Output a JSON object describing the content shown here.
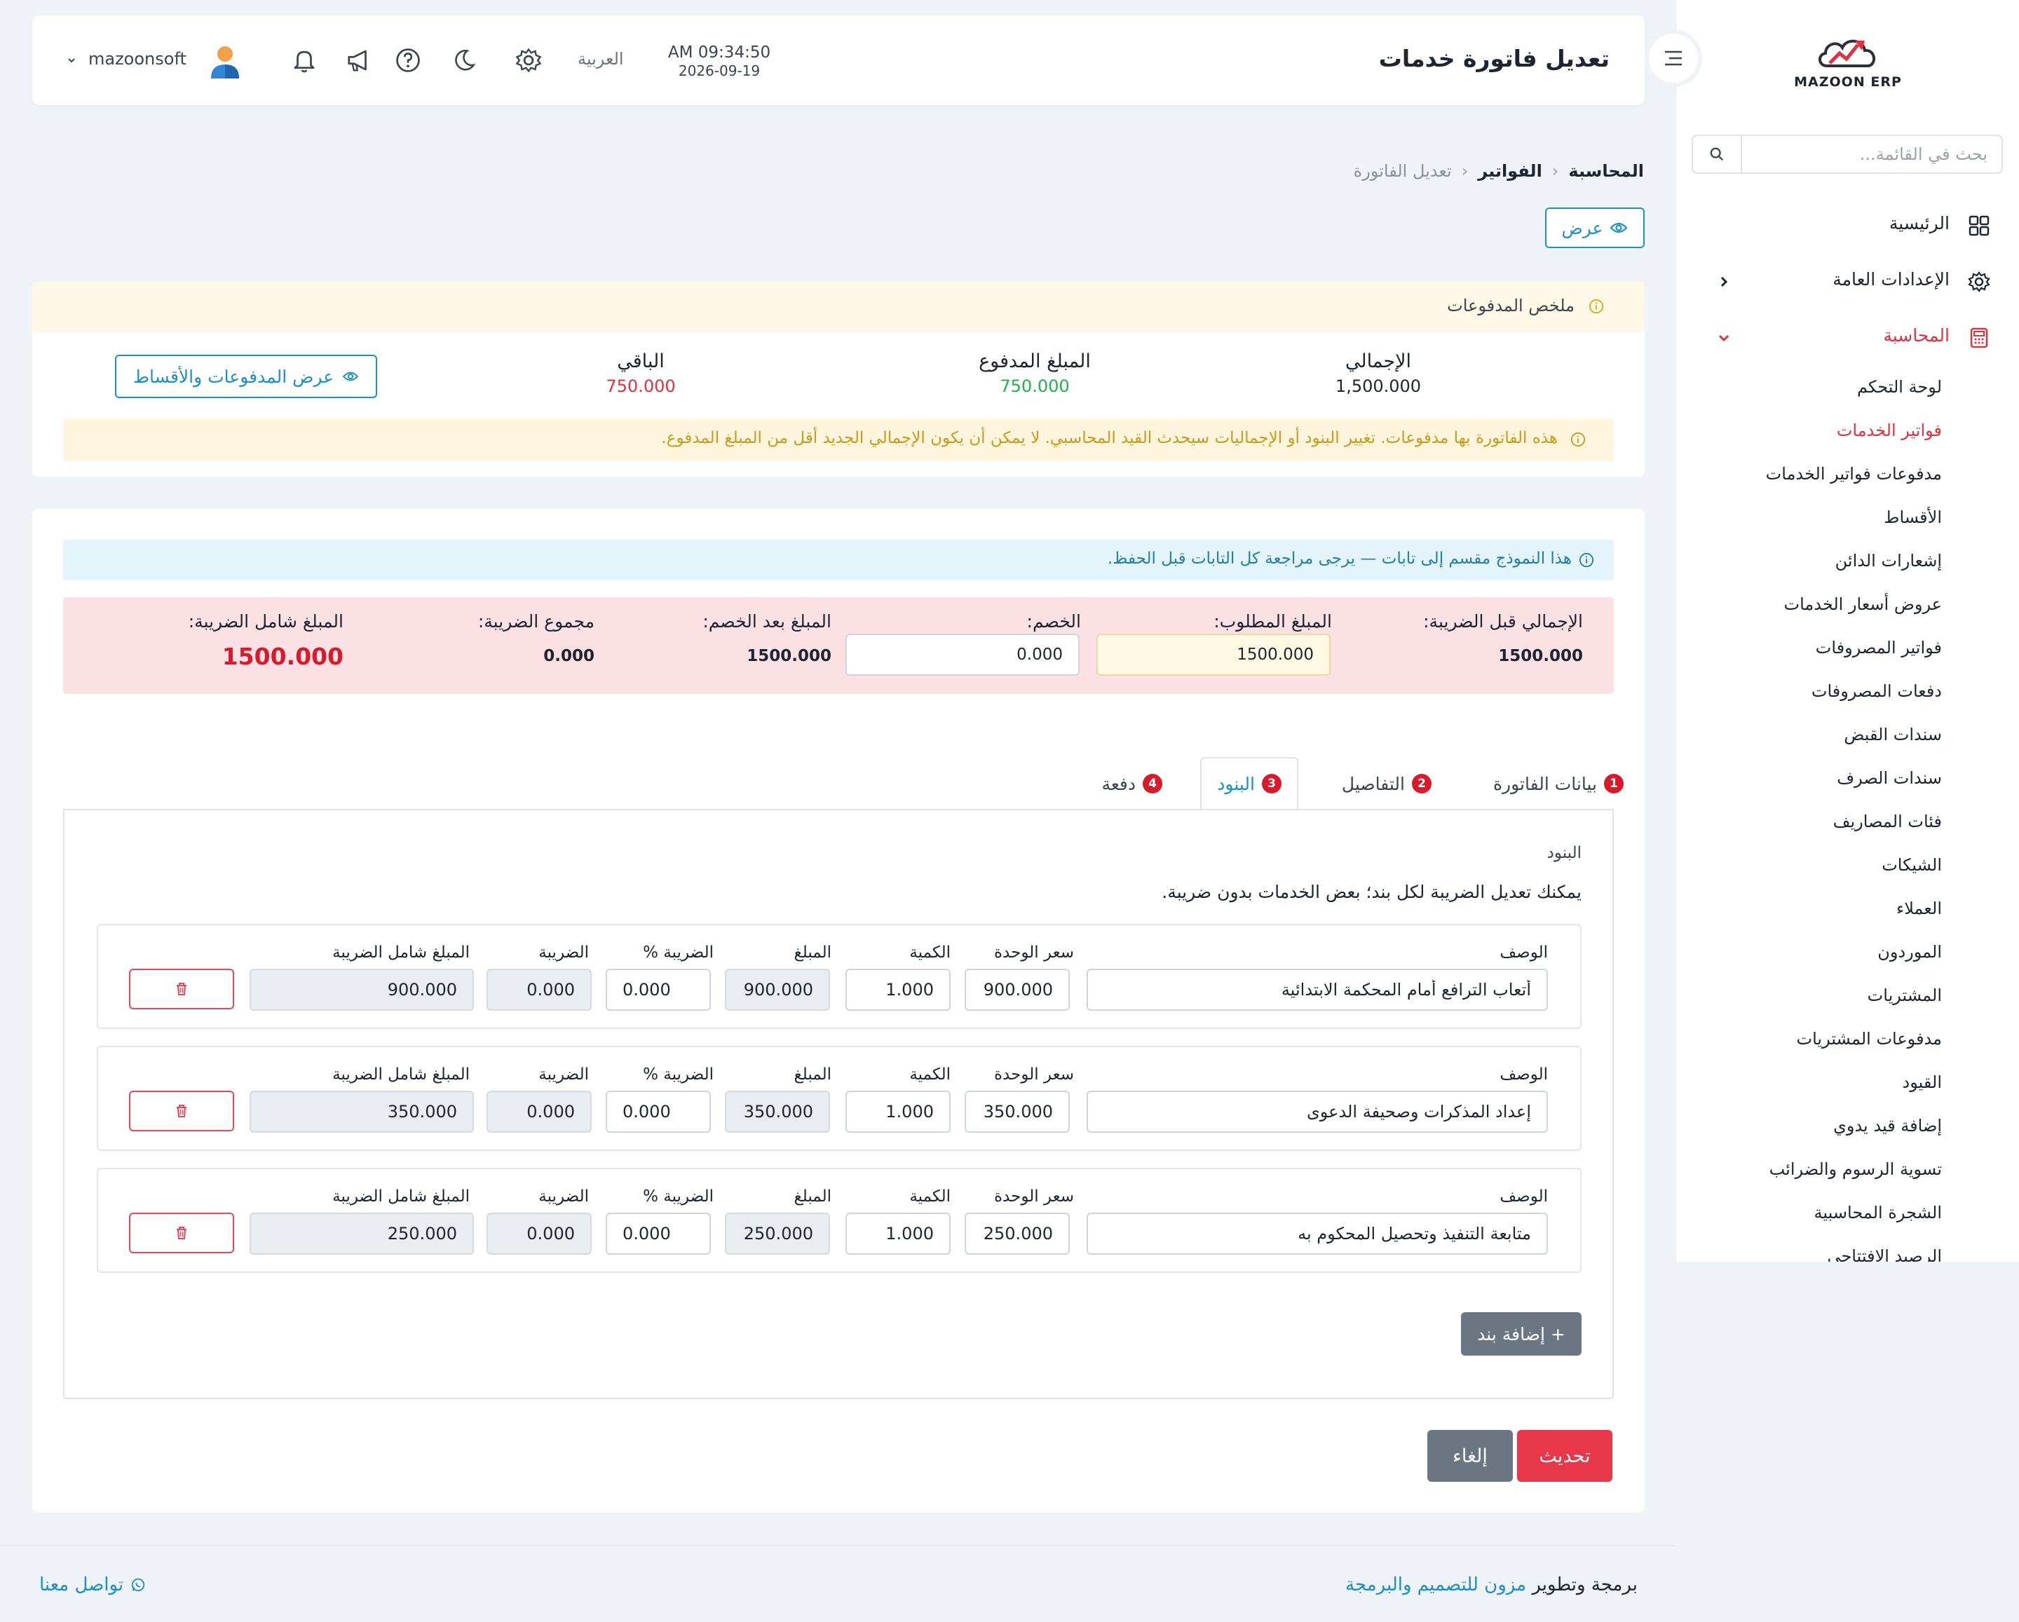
{
  "sidebar": {
    "brand": "MAZOON ERP",
    "search_placeholder": "بحث في القائمة...",
    "main_items": [
      {
        "label": "الرئيسية",
        "icon": "grid-icon"
      },
      {
        "label": "الإعدادات العامة",
        "icon": "gear-icon"
      },
      {
        "label": "المحاسبة",
        "icon": "calculator-icon"
      }
    ],
    "sub_items": [
      "لوحة التحكم",
      "فواتير الخدمات",
      "مدفوعات فواتير الخدمات",
      "الأقساط",
      "إشعارات الدائن",
      "عروض أسعار الخدمات",
      "فواتير المصروفات",
      "دفعات المصروفات",
      "سندات القبض",
      "سندات الصرف",
      "فئات المصاريف",
      "الشيكات",
      "العملاء",
      "الموردون",
      "المشتريات",
      "مدفوعات المشتريات",
      "القيود",
      "إضافة قيد يدوي",
      "تسوية الرسوم والضرائب",
      "الشجرة المحاسبية",
      "الرصيد الافتتاحي"
    ],
    "active_sub": "فواتير الخدمات"
  },
  "header": {
    "title": "تعديل فاتورة خدمات",
    "time": "AM 09:34:50",
    "date": "2026-09-19",
    "language": "العربية",
    "username": "mazoonsoft"
  },
  "breadcrumb": {
    "items": [
      "المحاسبة",
      "الفواتير"
    ],
    "current": "تعديل الفاتورة"
  },
  "view_button": "عرض",
  "payments_summary": {
    "title": "ملخص المدفوعات",
    "total_label": "الإجمالي",
    "total_value": "1,500.000",
    "paid_label": "المبلغ المدفوع",
    "paid_value": "750.000",
    "remaining_label": "الباقي",
    "remaining_value": "750.000",
    "button": "عرض المدفوعات والأقساط",
    "warning": "هذه الفاتورة بها مدفوعات. تغيير البنود أو الإجماليات سيحدث القيد المحاسبي. لا يمكن أن يكون الإجمالي الجديد أقل من المبلغ المدفوع."
  },
  "form": {
    "info": "هذا النموذج مقسم إلى تابات — يرجى مراجعة كل التابات قبل الحفظ.",
    "totals": {
      "subtotal_label": "الإجمالي قبل الضريبة:",
      "subtotal_value": "1500.000",
      "required_label": "المبلغ المطلوب:",
      "required_value": "1500.000",
      "discount_label": "الخصم:",
      "discount_value": "0.000",
      "after_discount_label": "المبلغ بعد الخصم:",
      "after_discount_value": "1500.000",
      "tax_total_label": "مجموع الضريبة:",
      "tax_total_value": "0.000",
      "grand_label": "المبلغ شامل الضريبة:",
      "grand_value": "1500.000"
    },
    "tabs": [
      {
        "num": "1",
        "label": "بيانات الفاتورة"
      },
      {
        "num": "2",
        "label": "التفاصيل"
      },
      {
        "num": "3",
        "label": "البنود"
      },
      {
        "num": "4",
        "label": "دفعة"
      }
    ],
    "active_tab": "البنود",
    "items_title": "البنود",
    "items_help": "يمكنك تعديل الضريبة لكل بند؛ بعض الخدمات بدون ضريبة.",
    "columns": {
      "description": "الوصف",
      "unit_price": "سعر الوحدة",
      "quantity": "الكمية",
      "amount": "المبلغ",
      "tax_percent": "الضريبة %",
      "tax": "الضريبة",
      "total_with_tax": "المبلغ شامل الضريبة"
    },
    "items": [
      {
        "description": "أتعاب الترافع أمام المحكمة الابتدائية",
        "unit_price": "900.000",
        "quantity": "1.000",
        "amount": "900.000",
        "tax_percent": "0.000",
        "tax": "0.000",
        "total": "900.000"
      },
      {
        "description": "إعداد المذكرات وصحيفة الدعوى",
        "unit_price": "350.000",
        "quantity": "1.000",
        "amount": "350.000",
        "tax_percent": "0.000",
        "tax": "0.000",
        "total": "350.000"
      },
      {
        "description": "متابعة التنفيذ وتحصيل المحكوم به",
        "unit_price": "250.000",
        "quantity": "1.000",
        "amount": "250.000",
        "tax_percent": "0.000",
        "tax": "0.000",
        "total": "250.000"
      }
    ],
    "add_item": "+ إضافة بند",
    "update": "تحديث",
    "cancel": "إلغاء"
  },
  "footer": {
    "credit_prefix": "برمجة وتطوير",
    "credit_link": "مزون للتصميم والبرمجة",
    "contact": "تواصل معنا"
  },
  "colors": {
    "accent": "#1a8fc8",
    "danger": "#e8374a",
    "paid": "#22b04b",
    "remaining": "#e03140"
  }
}
